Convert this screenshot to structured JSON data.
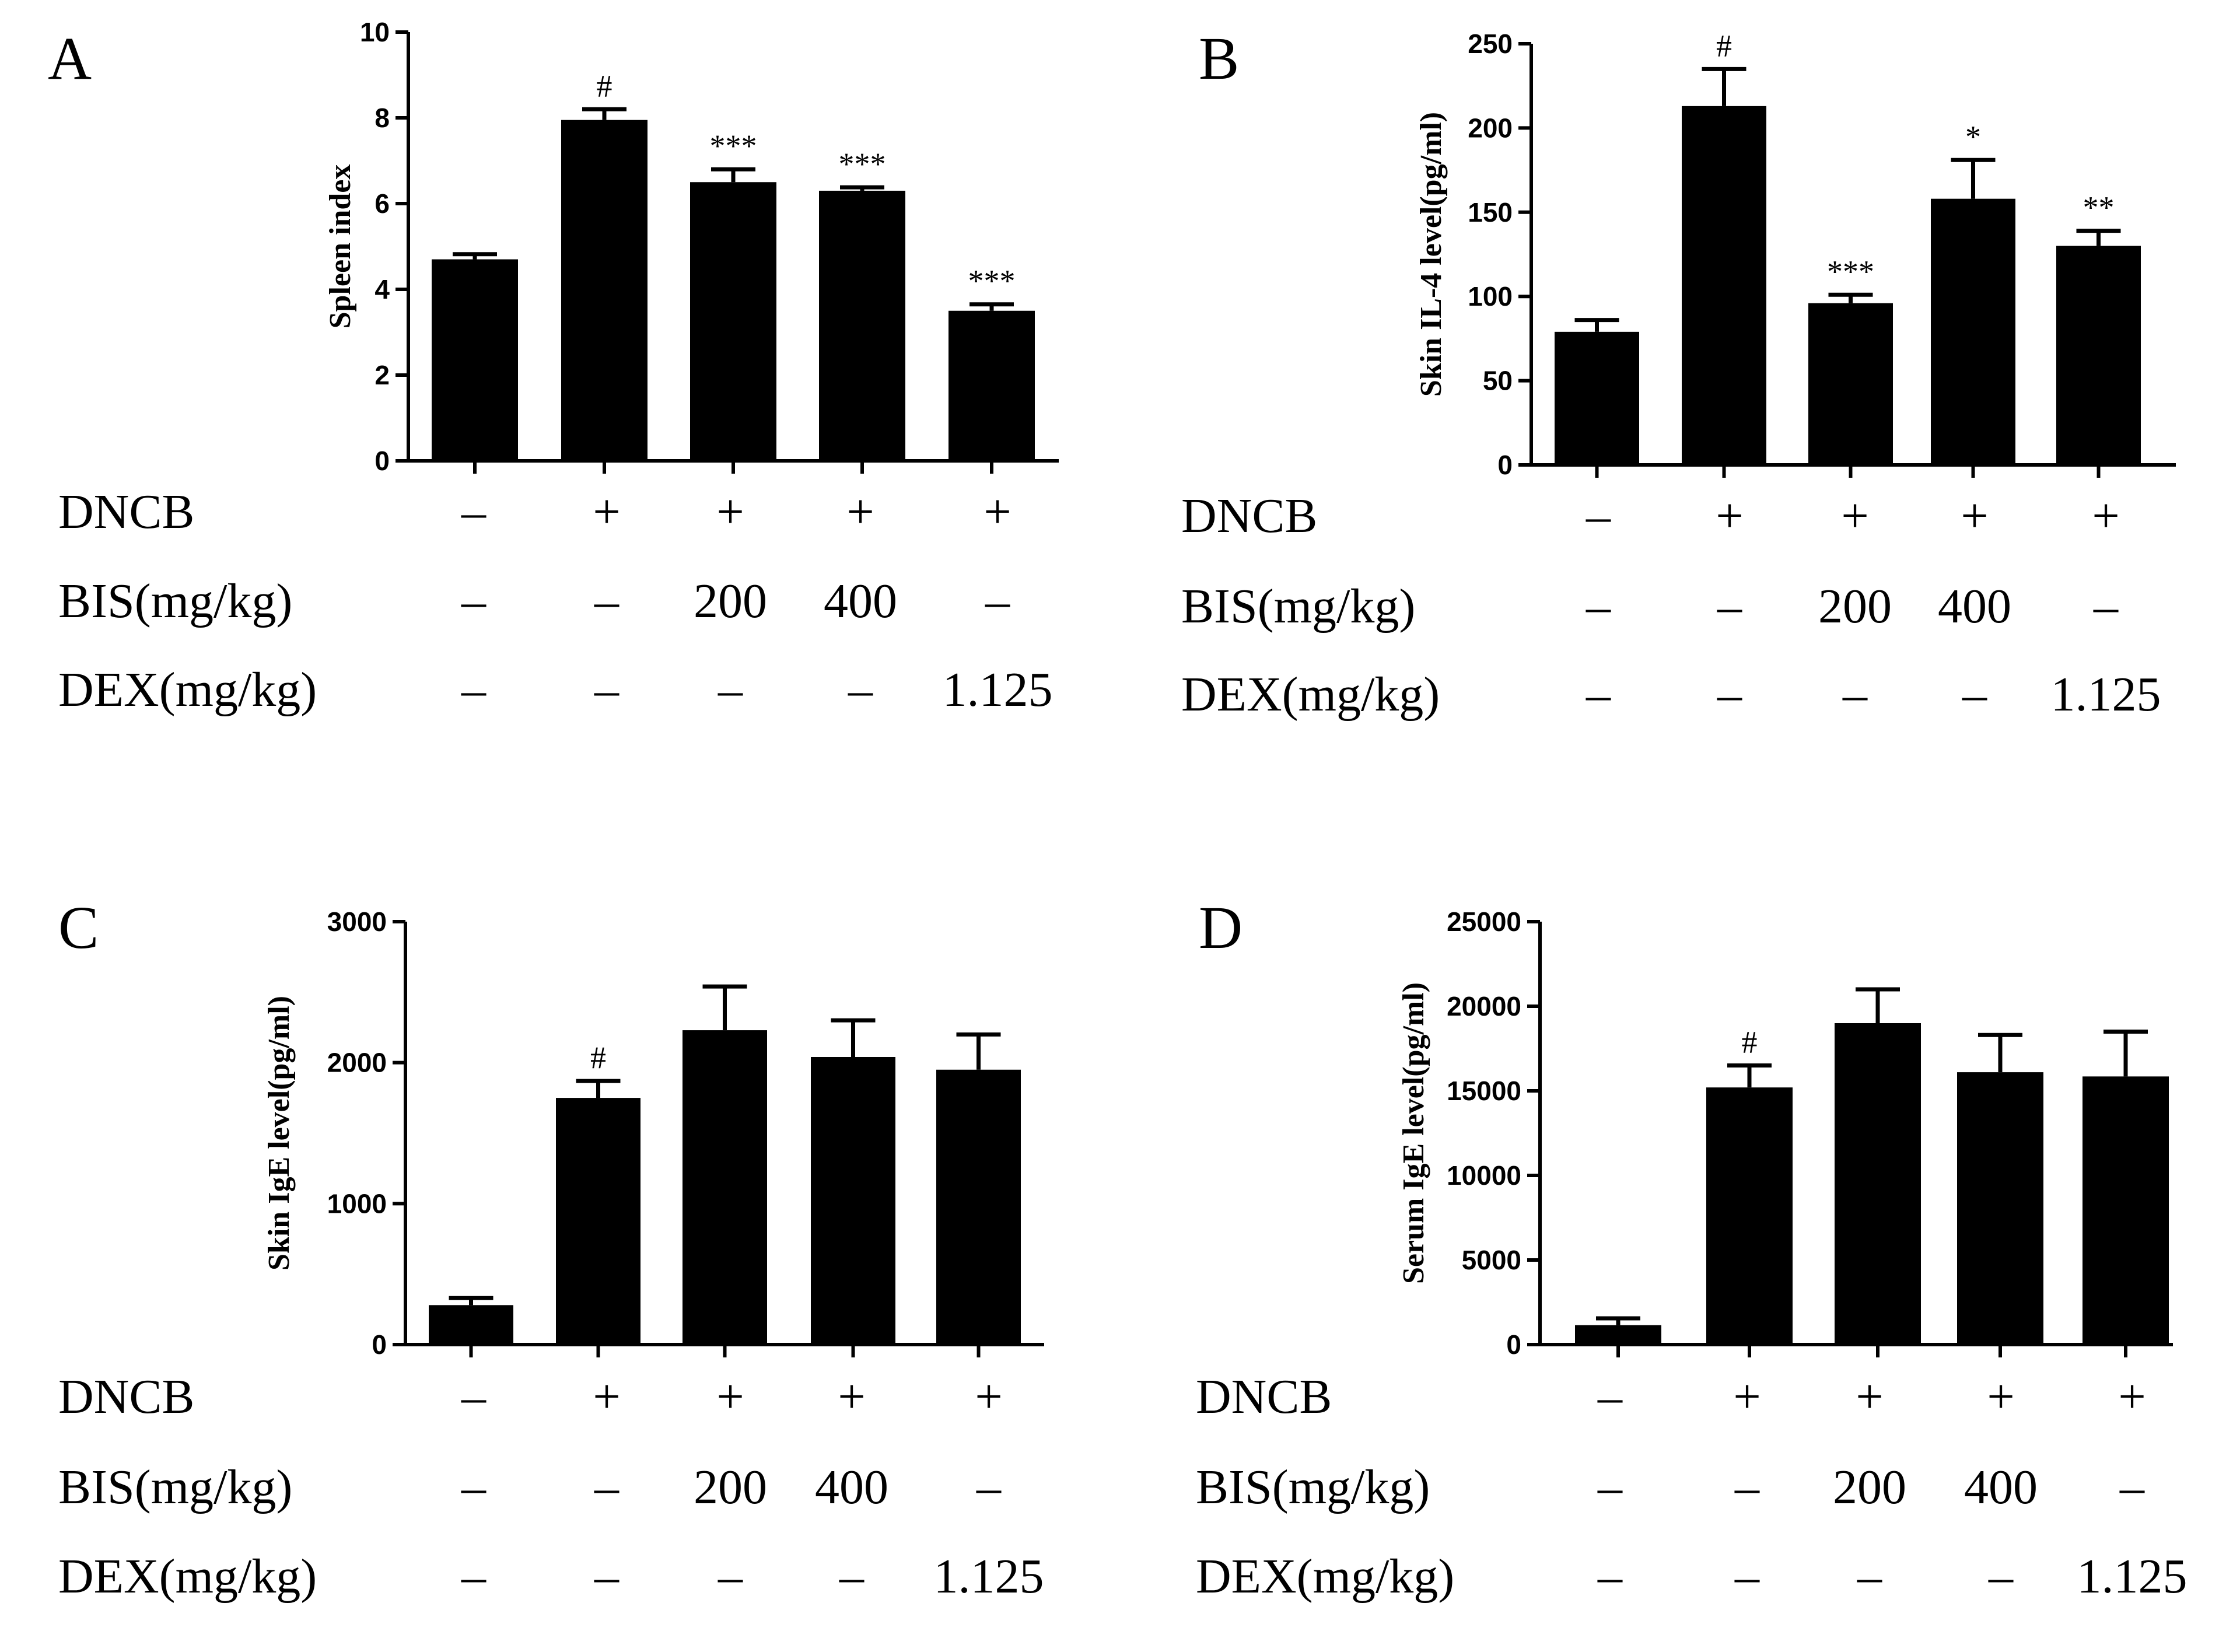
{
  "chart_data": [
    {
      "panel": "A",
      "type": "bar",
      "ylabel": "Spleen index",
      "ylim": [
        0,
        10
      ],
      "yticks": [
        0,
        2,
        4,
        6,
        8,
        10
      ],
      "values": [
        4.7,
        7.95,
        6.5,
        6.3,
        3.5
      ],
      "errors": [
        0.12,
        0.25,
        0.3,
        0.08,
        0.15
      ],
      "significance": [
        "",
        "#",
        "***",
        "***",
        "***"
      ],
      "rows": [
        {
          "label": "DNCB",
          "cells": [
            "–",
            "+",
            "+",
            "+",
            "+"
          ]
        },
        {
          "label": "BIS(mg/kg)",
          "cells": [
            "–",
            "–",
            "200",
            "400",
            "–"
          ]
        },
        {
          "label": "DEX(mg/kg)",
          "cells": [
            "–",
            "–",
            "–",
            "–",
            "1.125"
          ]
        }
      ]
    },
    {
      "panel": "B",
      "type": "bar",
      "ylabel": "Skin IL-4 level(pg/ml)",
      "ylim": [
        0,
        250
      ],
      "yticks": [
        0,
        50,
        100,
        150,
        200,
        250
      ],
      "values": [
        79,
        213,
        96,
        158,
        130
      ],
      "errors": [
        7,
        22,
        5,
        23,
        9
      ],
      "significance": [
        "",
        "#",
        "***",
        "*",
        "**"
      ],
      "rows": [
        {
          "label": "DNCB",
          "cells": [
            "–",
            "+",
            "+",
            "+",
            "+"
          ]
        },
        {
          "label": "BIS(mg/kg)",
          "cells": [
            "–",
            "–",
            "200",
            "400",
            "–"
          ]
        },
        {
          "label": "DEX(mg/kg)",
          "cells": [
            "–",
            "–",
            "–",
            "–",
            "1.125"
          ]
        }
      ]
    },
    {
      "panel": "C",
      "type": "bar",
      "ylabel": "Skin IgE level(pg/ml)",
      "ylim": [
        0,
        3000
      ],
      "yticks": [
        0,
        1000,
        2000,
        3000
      ],
      "values": [
        280,
        1750,
        2230,
        2040,
        1950
      ],
      "errors": [
        50,
        120,
        310,
        260,
        250
      ],
      "significance": [
        "",
        "#",
        "",
        "",
        ""
      ],
      "rows": [
        {
          "label": "DNCB",
          "cells": [
            "–",
            "+",
            "+",
            "+",
            "+"
          ]
        },
        {
          "label": "BIS(mg/kg)",
          "cells": [
            "–",
            "–",
            "200",
            "400",
            "–"
          ]
        },
        {
          "label": "DEX(mg/kg)",
          "cells": [
            "–",
            "–",
            "–",
            "–",
            "1.125"
          ]
        }
      ]
    },
    {
      "panel": "D",
      "type": "bar",
      "ylabel": "Serum IgE level(pg/ml)",
      "ylim": [
        0,
        25000
      ],
      "yticks": [
        0,
        5000,
        10000,
        15000,
        20000,
        25000
      ],
      "values": [
        1150,
        15200,
        19000,
        16100,
        15850
      ],
      "errors": [
        400,
        1300,
        2000,
        2200,
        2650
      ],
      "significance": [
        "",
        "#",
        "",
        "",
        ""
      ],
      "rows": [
        {
          "label": "DNCB",
          "cells": [
            "–",
            "+",
            "+",
            "+",
            "+"
          ]
        },
        {
          "label": "BIS(mg/kg)",
          "cells": [
            "–",
            "–",
            "200",
            "400",
            "–"
          ]
        },
        {
          "label": "DEX(mg/kg)",
          "cells": [
            "–",
            "–",
            "–",
            "–",
            "1.125"
          ]
        }
      ]
    }
  ]
}
